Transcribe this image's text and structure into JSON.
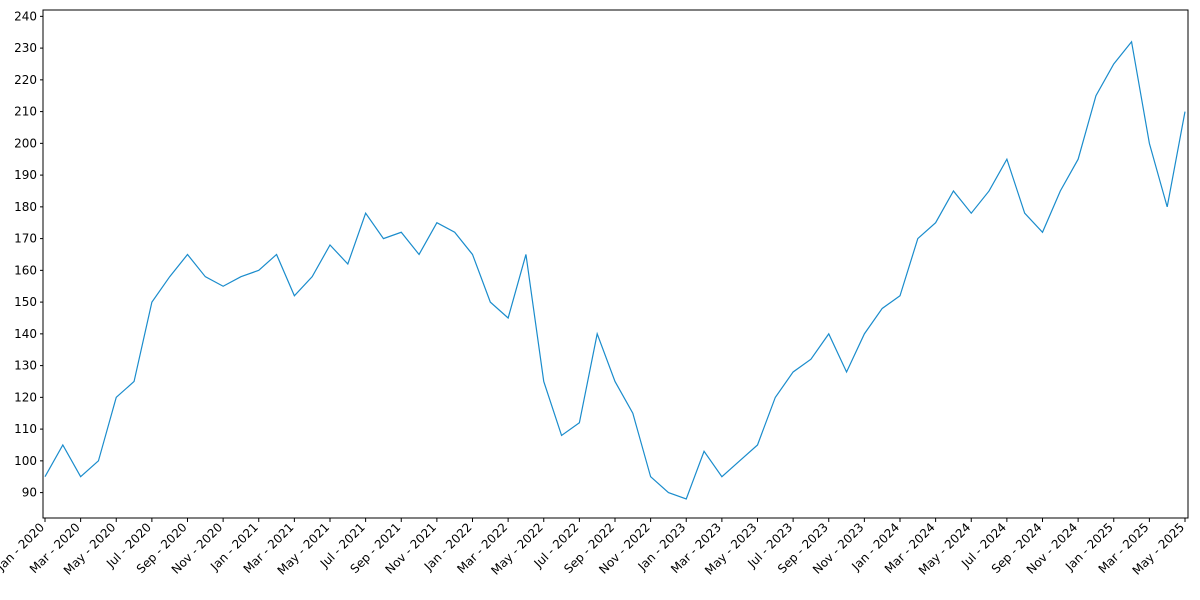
{
  "chart_data": {
    "type": "line",
    "x": [
      "2020-01",
      "2020-02",
      "2020-03",
      "2020-04",
      "2020-05",
      "2020-06",
      "2020-07",
      "2020-08",
      "2020-09",
      "2020-10",
      "2020-11",
      "2020-12",
      "2021-01",
      "2021-02",
      "2021-03",
      "2021-04",
      "2021-05",
      "2021-06",
      "2021-07",
      "2021-08",
      "2021-09",
      "2021-10",
      "2021-11",
      "2021-12",
      "2022-01",
      "2022-02",
      "2022-03",
      "2022-04",
      "2022-05",
      "2022-06",
      "2022-07",
      "2022-08",
      "2022-09",
      "2022-10",
      "2022-11",
      "2022-12",
      "2023-01",
      "2023-02",
      "2023-03",
      "2023-04",
      "2023-05",
      "2023-06",
      "2023-07",
      "2023-08",
      "2023-09",
      "2023-10",
      "2023-11",
      "2023-12",
      "2024-01",
      "2024-02",
      "2024-03",
      "2024-04",
      "2024-05",
      "2024-06",
      "2024-07",
      "2024-08",
      "2024-09",
      "2024-10",
      "2024-11",
      "2024-12",
      "2025-01",
      "2025-02",
      "2025-03",
      "2025-04",
      "2025-05"
    ],
    "series": [
      {
        "color": "#1a8ccc",
        "values": [
          95,
          105,
          95,
          100,
          120,
          125,
          150,
          158,
          165,
          158,
          155,
          158,
          160,
          165,
          152,
          158,
          168,
          162,
          178,
          170,
          172,
          165,
          175,
          172,
          165,
          150,
          145,
          165,
          125,
          108,
          112,
          140,
          125,
          115,
          95,
          90,
          88,
          103,
          95,
          100,
          105,
          120,
          128,
          132,
          140,
          128,
          140,
          148,
          152,
          170,
          175,
          185,
          178,
          185,
          195,
          178,
          172,
          185,
          195,
          215,
          225,
          232,
          200,
          180,
          210
        ]
      }
    ],
    "xlim": [
      "2020-01",
      "2025-05"
    ],
    "xticks": [
      {
        "value": "2020-01",
        "label": "Jan - 2020"
      },
      {
        "value": "2020-03",
        "label": "Mar - 2020"
      },
      {
        "value": "2020-05",
        "label": "May - 2020"
      },
      {
        "value": "2020-07",
        "label": "Jul - 2020"
      },
      {
        "value": "2020-09",
        "label": "Sep - 2020"
      },
      {
        "value": "2020-11",
        "label": "Nov - 2020"
      },
      {
        "value": "2021-01",
        "label": "Jan - 2021"
      },
      {
        "value": "2021-03",
        "label": "Mar - 2021"
      },
      {
        "value": "2021-05",
        "label": "May - 2021"
      },
      {
        "value": "2021-07",
        "label": "Jul - 2021"
      },
      {
        "value": "2021-09",
        "label": "Sep - 2021"
      },
      {
        "value": "2021-11",
        "label": "Nov - 2021"
      },
      {
        "value": "2022-01",
        "label": "Jan - 2022"
      },
      {
        "value": "2022-03",
        "label": "Mar - 2022"
      },
      {
        "value": "2022-05",
        "label": "May - 2022"
      },
      {
        "value": "2022-07",
        "label": "Jul - 2022"
      },
      {
        "value": "2022-09",
        "label": "Sep - 2022"
      },
      {
        "value": "2022-11",
        "label": "Nov - 2022"
      },
      {
        "value": "2023-01",
        "label": "Jan - 2023"
      },
      {
        "value": "2023-03",
        "label": "Mar - 2023"
      },
      {
        "value": "2023-05",
        "label": "May - 2023"
      },
      {
        "value": "2023-07",
        "label": "Jul - 2023"
      },
      {
        "value": "2023-09",
        "label": "Sep - 2023"
      },
      {
        "value": "2023-11",
        "label": "Nov - 2023"
      },
      {
        "value": "2024-01",
        "label": "Jan - 2024"
      },
      {
        "value": "2024-03",
        "label": "Mar - 2024"
      },
      {
        "value": "2024-05",
        "label": "May - 2024"
      },
      {
        "value": "2024-07",
        "label": "Jul - 2024"
      },
      {
        "value": "2024-09",
        "label": "Sep - 2024"
      },
      {
        "value": "2024-11",
        "label": "Nov - 2024"
      },
      {
        "value": "2025-01",
        "label": "Jan - 2025"
      },
      {
        "value": "2025-03",
        "label": "Mar - 2025"
      },
      {
        "value": "2025-05",
        "label": "May - 2025"
      }
    ],
    "ylim": [
      82,
      242
    ],
    "yticks": [
      90,
      100,
      110,
      120,
      130,
      140,
      150,
      160,
      170,
      180,
      190,
      200,
      210,
      220,
      230,
      240
    ],
    "grid": false
  }
}
